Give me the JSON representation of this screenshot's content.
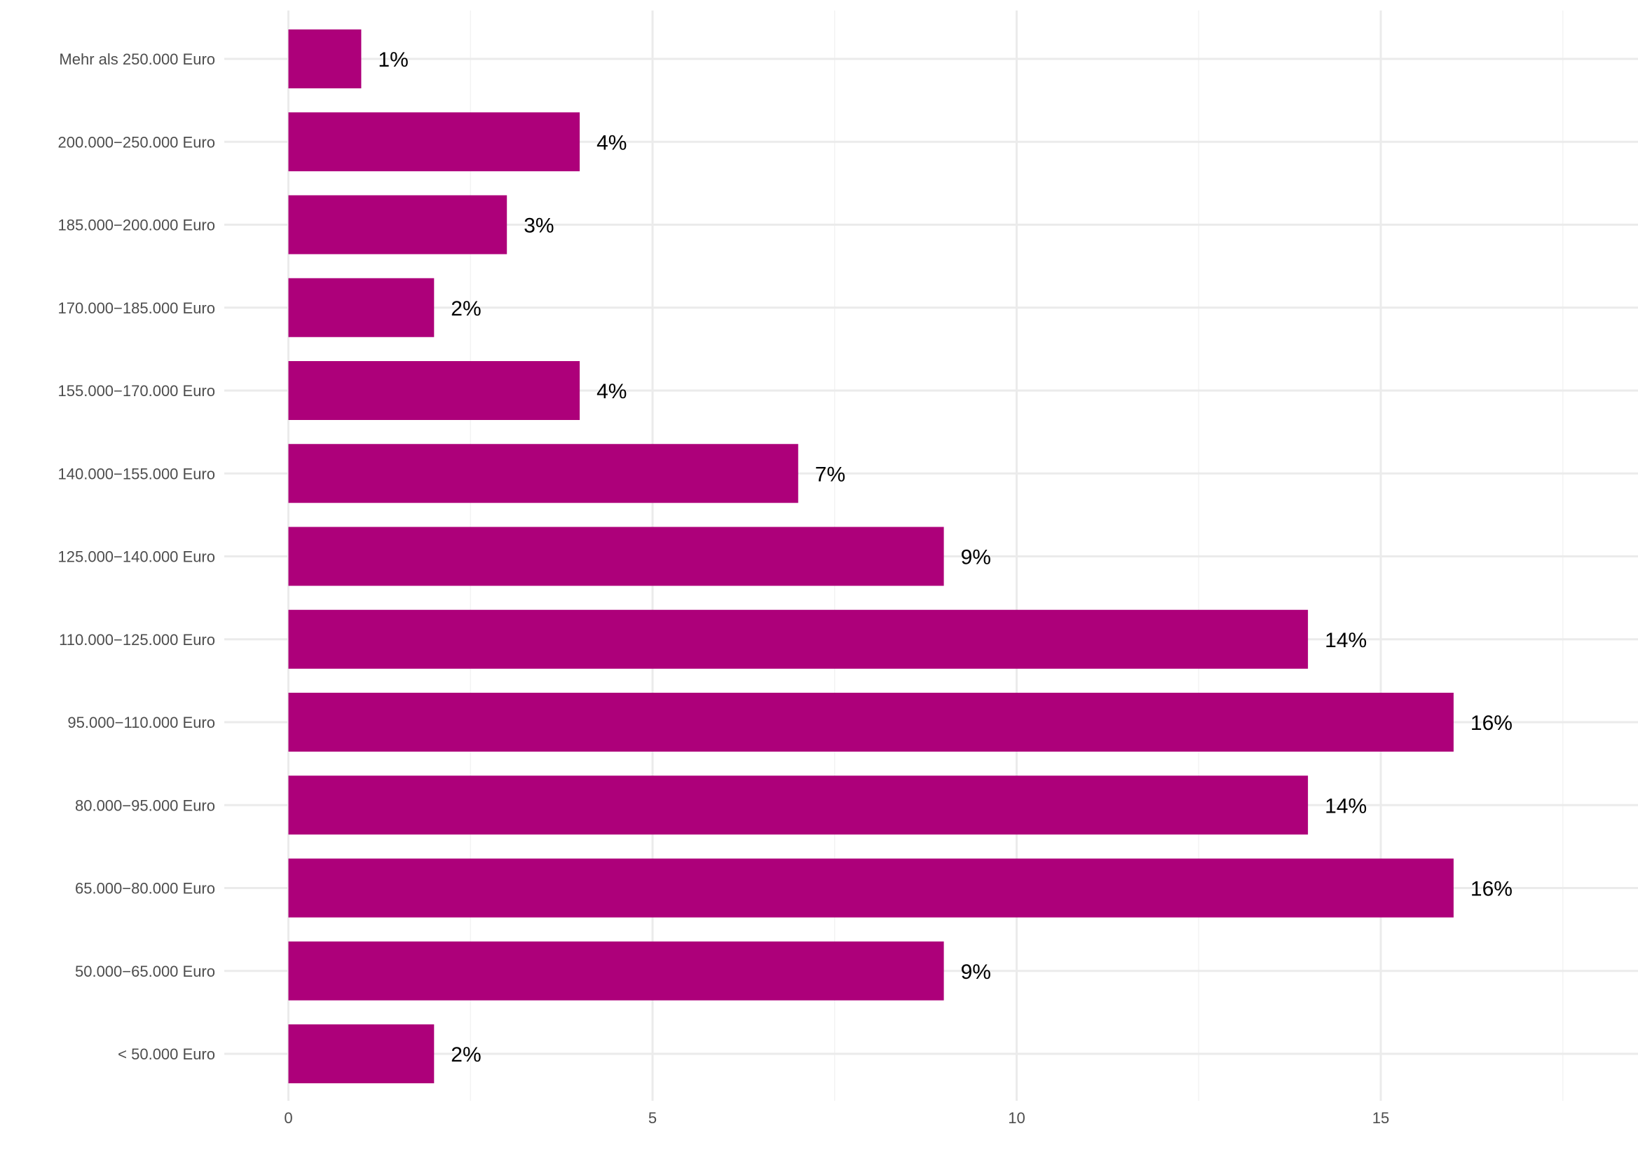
{
  "chart_data": {
    "type": "bar",
    "orientation": "horizontal",
    "categories": [
      "< 50.000 Euro",
      "50.000−65.000 Euro",
      "65.000−80.000 Euro",
      "80.000−95.000 Euro",
      "95.000−110.000 Euro",
      "110.000−125.000 Euro",
      "125.000−140.000 Euro",
      "140.000−155.000 Euro",
      "155.000−170.000 Euro",
      "170.000−185.000 Euro",
      "185.000−200.000 Euro",
      "200.000−250.000 Euro",
      "Mehr als 250.000 Euro"
    ],
    "values": [
      2,
      9,
      16,
      14,
      16,
      14,
      9,
      7,
      4,
      2,
      3,
      4,
      1
    ],
    "data_labels": [
      "2%",
      "9%",
      "16%",
      "14%",
      "16%",
      "14%",
      "9%",
      "7%",
      "4%",
      "2%",
      "3%",
      "4%",
      "1%"
    ],
    "x_ticks": [
      "0",
      "5",
      "10",
      "15"
    ],
    "xlim": [
      0,
      18.5
    ],
    "grid": true,
    "legend": "none",
    "bar_color": "#ad007a",
    "title": "",
    "xlabel": "",
    "ylabel": ""
  }
}
